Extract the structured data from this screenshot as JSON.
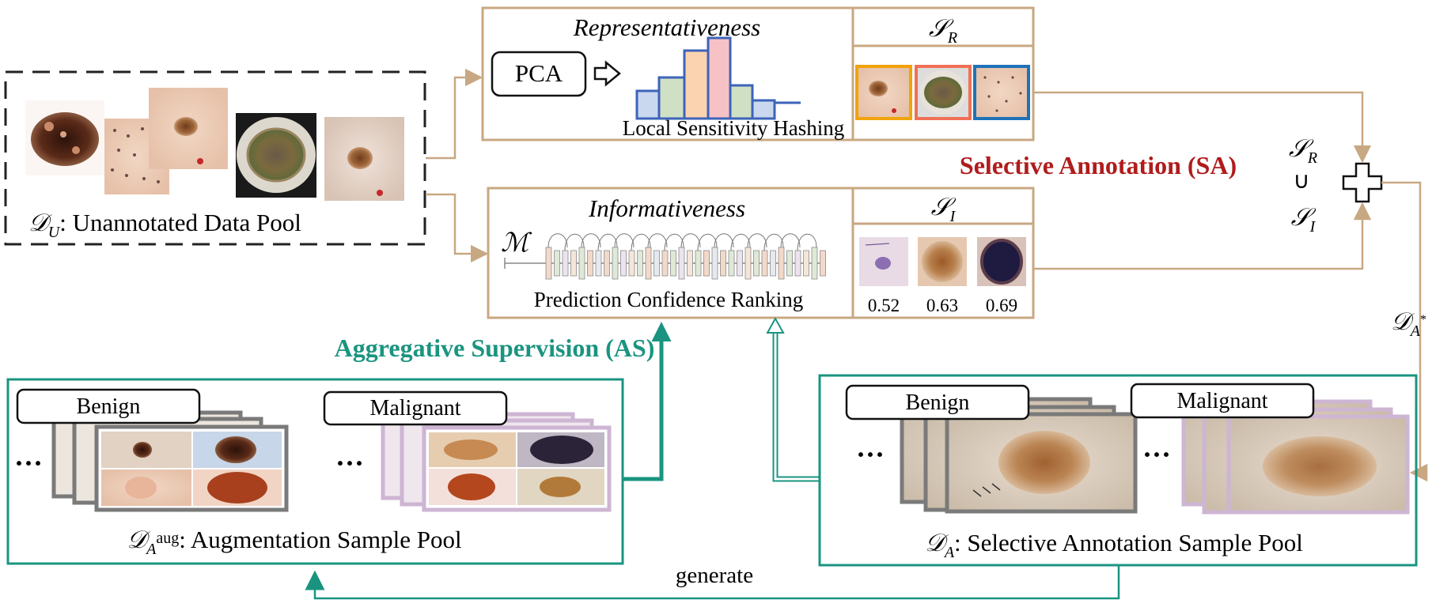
{
  "unannotated_pool": {
    "symbol": "𝒟",
    "subscript": "U",
    "label": "Unannotated Data Pool"
  },
  "representativeness": {
    "title": "Representativeness",
    "pca_label": "PCA",
    "caption": "Local Sensitivity Hashing",
    "set_symbol": "𝒮",
    "set_subscript": "R"
  },
  "informativeness": {
    "title": "Informativeness",
    "model_symbol": "ℳ",
    "caption": "Prediction Confidence Ranking",
    "set_symbol": "𝒮",
    "set_subscript": "I",
    "scores": [
      "0.52",
      "0.63",
      "0.69"
    ]
  },
  "selective_annotation": {
    "label": "Selective Annotation (SA)",
    "color": "#b01c1c"
  },
  "union": {
    "top_symbol": "𝒮",
    "top_subscript": "R",
    "operator": "∪",
    "bottom_symbol": "𝒮",
    "bottom_subscript": "I"
  },
  "annotated_star": {
    "symbol": "𝒟",
    "subscript": "A",
    "superscript": "*"
  },
  "aggregative_supervision": {
    "label": "Aggregative Supervision (AS)",
    "color": "#1a9480"
  },
  "augmentation_pool": {
    "symbol": "𝒟",
    "subscript": "A",
    "superscript": "aug",
    "label": "Augmentation Sample Pool",
    "benign_label": "Benign",
    "malignant_label": "Malignant",
    "ellipsis": "···"
  },
  "annotation_pool": {
    "symbol": "𝒟",
    "subscript": "A",
    "label": "Selective Annotation Sample Pool",
    "benign_label": "Benign",
    "malignant_label": "Malignant",
    "ellipsis": "···"
  },
  "generate_label": "generate",
  "colors": {
    "tan": "#c8a882",
    "teal": "#1a9480",
    "dark_red": "#b01c1c",
    "gray_stack": "#7a7a7a",
    "purple_stack": "#cdb5d3"
  }
}
